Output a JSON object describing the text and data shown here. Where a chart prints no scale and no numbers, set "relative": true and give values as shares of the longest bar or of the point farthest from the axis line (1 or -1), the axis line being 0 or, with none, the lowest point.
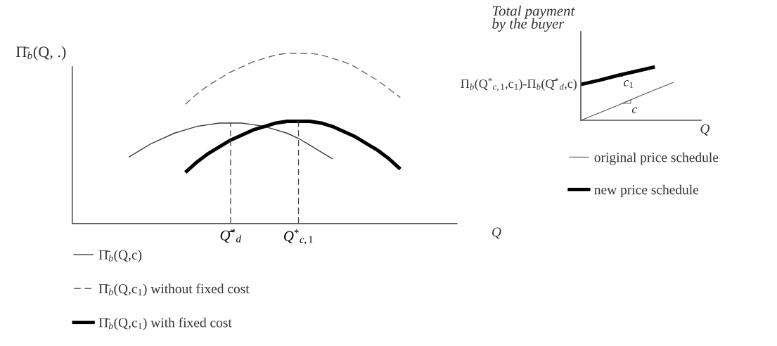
{
  "chart_data": [
    {
      "type": "line",
      "relative": true,
      "ylabel": "Π̄$_{b}$(Q, .)",
      "xlabel": "Q",
      "categories": [
        null,
        null,
        null,
        null,
        null,
        null,
        null,
        null,
        null,
        null,
        null,
        null,
        null,
        null,
        "Q̄$^{*}$$_{d}$",
        null,
        null,
        null,
        null,
        null,
        "Q$^{*}$$_{c,1}$",
        null,
        null,
        null,
        null,
        null,
        null,
        null,
        null,
        null,
        null,
        null,
        null,
        null,
        null
      ],
      "tick_labels": "x",
      "legend": "bottom",
      "ref_lines": [
        {
          "axis": "x",
          "value": "Q̄$^{*}$$_{d}$",
          "color": "#444444",
          "line_style": "dashed"
        },
        {
          "axis": "x",
          "value": "Q$^{*}$$_{c,1}$",
          "color": "#444444",
          "line_style": "dashed"
        }
      ],
      "series": [
        {
          "name": "Π̄$_{b}$(Q,c)",
          "color": "#3a3a3a",
          "values": [
            null,
            null,
            null,
            null,
            null,
            0.39,
            0.43,
            0.47,
            0.5,
            0.53,
            0.55,
            0.57,
            0.58,
            0.59,
            0.59,
            0.59,
            0.58,
            0.57,
            0.55,
            0.53,
            0.5,
            0.46,
            0.42,
            0.38,
            null,
            null,
            null,
            null,
            null,
            null,
            null,
            null,
            null,
            null,
            null
          ]
        },
        {
          "name": "Π̄$_{b}$(Q,c$_{1}$) without fixed cost",
          "color": "#666666",
          "line_style": "dashed",
          "values": [
            null,
            null,
            null,
            null,
            null,
            null,
            null,
            null,
            null,
            null,
            0.7,
            0.76,
            0.81,
            0.85,
            0.89,
            0.92,
            0.95,
            0.97,
            0.99,
            1.0,
            1.0,
            1.0,
            0.99,
            0.97,
            0.95,
            0.92,
            0.88,
            0.84,
            0.79,
            0.74,
            null,
            null,
            null,
            null,
            null
          ]
        },
        {
          "name": "Π̄$_{b}$(Q,c$_{1}$) with fixed cost",
          "color": "#000000",
          "values": [
            null,
            null,
            null,
            null,
            null,
            null,
            null,
            null,
            null,
            null,
            0.3,
            0.36,
            0.41,
            0.45,
            0.49,
            0.52,
            0.55,
            0.57,
            0.59,
            0.6,
            0.6,
            0.6,
            0.59,
            0.57,
            0.54,
            0.51,
            0.47,
            0.43,
            0.38,
            0.32,
            null,
            null,
            null,
            null,
            null
          ]
        }
      ]
    },
    {
      "type": "line",
      "relative": true,
      "ylabel": "Total payment\nby the buyer",
      "xlabel": "Q",
      "categories": [
        null,
        null,
        null,
        null,
        null,
        null
      ],
      "tick_labels": false,
      "legend": "bottom",
      "annotations": [
        "Π$_{b}$(Q$^{*}$$_{c,1}$,c$_{1}$)-Π$_{b}$(Q̄$^{*}$$_{d}$,c)",
        "c$_{1}$",
        "c"
      ],
      "series": [
        {
          "name": "original price schedule",
          "color": "#555555",
          "values": [
            0,
            0.14,
            0.28,
            0.43,
            0.57,
            0.71
          ]
        },
        {
          "name": "new price schedule",
          "color": "#000000",
          "values": [
            0.67,
            0.75,
            0.84,
            0.92,
            1.0,
            null
          ]
        }
      ]
    }
  ]
}
